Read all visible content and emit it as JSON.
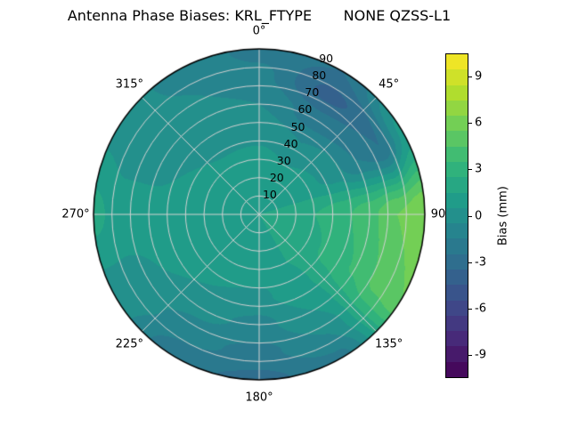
{
  "title": "Antenna Phase Biases: KRL_FTYPE       NONE QZSS-L1",
  "chart_data": {
    "type": "heatmap",
    "subtype": "polar_filled_contour",
    "title": "Antenna Phase Biases: KRL_FTYPE       NONE QZSS-L1",
    "angular_ticks": [
      {
        "deg": 0,
        "label": "0°"
      },
      {
        "deg": 45,
        "label": "45°"
      },
      {
        "deg": 90,
        "label": "90"
      },
      {
        "deg": 135,
        "label": "135°"
      },
      {
        "deg": 180,
        "label": "180°"
      },
      {
        "deg": 225,
        "label": "225°"
      },
      {
        "deg": 270,
        "label": "270°"
      },
      {
        "deg": 315,
        "label": "315°"
      }
    ],
    "radial_ticks": [
      10,
      20,
      30,
      40,
      50,
      60,
      70,
      80,
      90
    ],
    "radial_tick_angle_deg": 22.5,
    "r_max": 90,
    "theta_zero": "top",
    "theta_direction": "clockwise",
    "azimuths_deg": [
      0,
      30,
      60,
      90,
      120,
      150,
      180,
      210,
      240,
      270,
      300,
      330,
      360
    ],
    "radii": [
      0,
      15,
      30,
      45,
      60,
      75,
      90
    ],
    "values_mm": [
      [
        1.5,
        1.2,
        0.8,
        0.2,
        -0.5,
        -1.2,
        -1.8
      ],
      [
        1.5,
        1.2,
        0.5,
        -0.5,
        -2.0,
        -3.8,
        -2.5
      ],
      [
        1.5,
        1.3,
        0.8,
        0.0,
        -1.5,
        -2.5,
        0.8
      ],
      [
        1.5,
        1.8,
        2.5,
        3.2,
        4.2,
        5.5,
        6.5
      ],
      [
        1.5,
        1.8,
        2.2,
        2.8,
        3.6,
        4.8,
        5.5
      ],
      [
        1.5,
        1.5,
        1.5,
        1.2,
        0.5,
        -0.5,
        -1.8
      ],
      [
        1.5,
        1.3,
        1.0,
        0.3,
        -0.8,
        -1.8,
        -2.8
      ],
      [
        1.5,
        1.3,
        1.0,
        0.5,
        -0.2,
        -1.2,
        -2.2
      ],
      [
        1.5,
        1.3,
        1.2,
        0.8,
        0.5,
        0.2,
        0.0
      ],
      [
        1.5,
        1.3,
        1.0,
        0.8,
        0.8,
        1.0,
        1.8
      ],
      [
        1.5,
        1.2,
        0.8,
        0.5,
        0.2,
        0.0,
        0.3
      ],
      [
        1.5,
        1.2,
        0.7,
        0.2,
        -0.2,
        -0.5,
        -0.8
      ],
      [
        1.5,
        1.2,
        0.8,
        0.2,
        -0.5,
        -1.2,
        -1.8
      ]
    ],
    "levels": {
      "min": -10.5,
      "max": 10.5,
      "step": 1
    },
    "colormap": {
      "name": "viridis",
      "stops": [
        "#440154",
        "#482878",
        "#3e4989",
        "#31688e",
        "#26828e",
        "#1f9e89",
        "#35b779",
        "#6ece58",
        "#b5de2b",
        "#fde725"
      ]
    },
    "grid": {
      "radial_step": 10,
      "angular_step_deg": 45,
      "color": "#d2d2d2"
    },
    "outline_color": "#000000"
  },
  "colorbar": {
    "label": "Bias (mm)",
    "ticks": [
      -9,
      -6,
      -3,
      0,
      3,
      6,
      9
    ],
    "min": -10.5,
    "max": 10.5
  }
}
